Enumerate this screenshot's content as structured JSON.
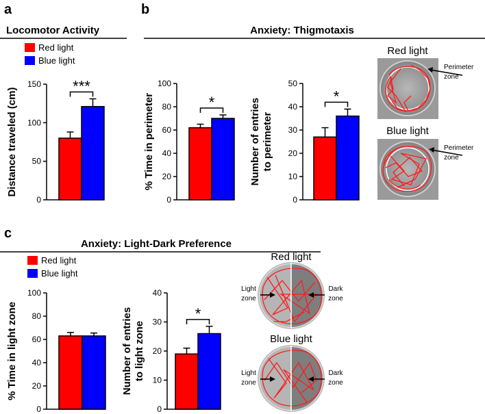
{
  "panels": {
    "a": "a",
    "b": "b",
    "c": "c"
  },
  "sections": {
    "a_title": "Locomotor Activity",
    "b_title": "Anxiety: Thigmotaxis",
    "c_title": "Anxiety: Light-Dark Preference"
  },
  "legend": {
    "red": "Red light",
    "blue": "Blue light",
    "red_color": "#ff0000",
    "blue_color": "#0000ff"
  },
  "photos": {
    "thig_red_title": "Red light",
    "thig_blue_title": "Blue light",
    "perimeter_line1": "Perimeter",
    "perimeter_line2": "zone",
    "ld_red_title": "Red light",
    "ld_blue_title": "Blue light",
    "light_line1": "Light",
    "light_line2": "zone",
    "dark_line1": "Dark",
    "dark_line2": "zone"
  },
  "chart_data": [
    {
      "id": "locomotor",
      "type": "bar",
      "title": "Locomotor Activity",
      "ylabel": "Distance traveled (cm)",
      "ylabel_lines": [
        "Distance traveled (cm)"
      ],
      "categories": [
        "Red light",
        "Blue light"
      ],
      "values": [
        80,
        121
      ],
      "errors": [
        8,
        10
      ],
      "ylim": [
        0,
        150
      ],
      "yticks": [
        "0",
        "50",
        "100",
        "150"
      ],
      "significance": "***"
    },
    {
      "id": "thig_time",
      "type": "bar",
      "title": "Anxiety: Thigmotaxis",
      "ylabel": "% Time in perimeter",
      "ylabel_lines": [
        "% Time in perimeter"
      ],
      "categories": [
        "Red light",
        "Blue light"
      ],
      "values": [
        62,
        70
      ],
      "errors": [
        3,
        3
      ],
      "ylim": [
        0,
        100
      ],
      "yticks": [
        "0",
        "20",
        "40",
        "60",
        "80",
        "100"
      ],
      "significance": "*"
    },
    {
      "id": "thig_entries",
      "type": "bar",
      "title": "Anxiety: Thigmotaxis",
      "ylabel": "Number of entries to perimeter",
      "ylabel_lines": [
        "Number of entries",
        "to perimeter"
      ],
      "categories": [
        "Red light",
        "Blue light"
      ],
      "values": [
        27,
        36
      ],
      "errors": [
        4,
        3
      ],
      "ylim": [
        0,
        50
      ],
      "yticks": [
        "0",
        "10",
        "20",
        "30",
        "40",
        "50"
      ],
      "significance": "*"
    },
    {
      "id": "ld_time",
      "type": "bar",
      "title": "Anxiety: Light-Dark Preference",
      "ylabel": "% Time in light zone",
      "ylabel_lines": [
        "% Time in light zone"
      ],
      "categories": [
        "Red light",
        "Blue light"
      ],
      "values": [
        63,
        63
      ],
      "errors": [
        3,
        2.5
      ],
      "ylim": [
        0,
        100
      ],
      "yticks": [
        "0",
        "20",
        "40",
        "60",
        "80",
        "100"
      ],
      "significance": ""
    },
    {
      "id": "ld_entries",
      "type": "bar",
      "title": "Anxiety: Light-Dark Preference",
      "ylabel": "Number of entries to light zone",
      "ylabel_lines": [
        "Number of entries",
        "to light zone"
      ],
      "categories": [
        "Red light",
        "Blue light"
      ],
      "values": [
        19,
        26
      ],
      "errors": [
        2,
        2.5
      ],
      "ylim": [
        0,
        40
      ],
      "yticks": [
        "0",
        "10",
        "20",
        "30",
        "40"
      ],
      "significance": "*"
    }
  ]
}
